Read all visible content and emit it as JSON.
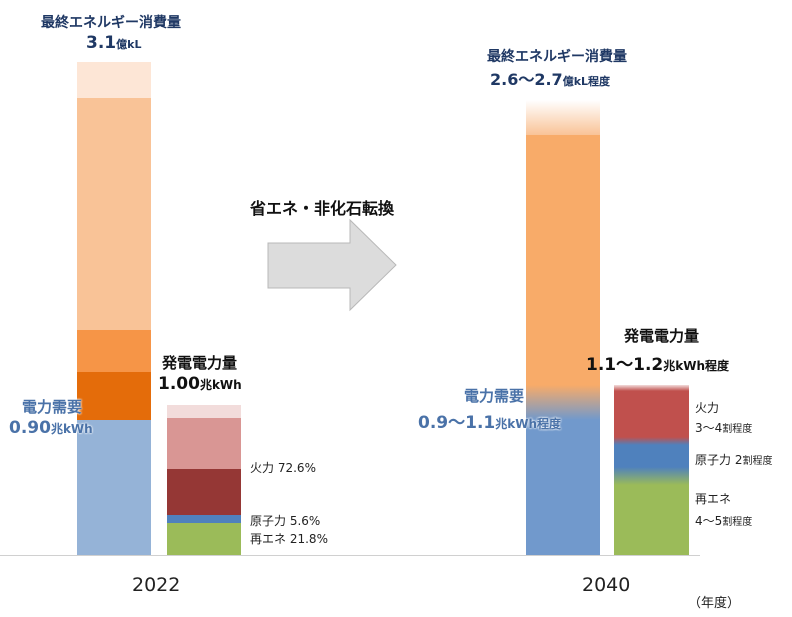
{
  "chart_data": {
    "type": "bar",
    "stacked": true,
    "categories": [
      "2022",
      "2040"
    ],
    "unit_note": "（年度）",
    "transition_label": "省エネ・非化石転換",
    "bars": {
      "2022": {
        "final_energy": {
          "title": "最終エネルギー消費量",
          "value": "3.1",
          "unit": "億kL"
        },
        "power_demand": {
          "title": "電力需要",
          "value": "0.90",
          "unit": "兆kWh"
        },
        "generation": {
          "title": "発電電力量",
          "value": "1.00",
          "unit": "兆kWh",
          "mix": [
            {
              "name": "火力",
              "label": "72.6%",
              "share": 72.6,
              "color": "#953735"
            },
            {
              "name": "原子力",
              "label": "5.6%",
              "share": 5.6,
              "color": "#4f81bd"
            },
            {
              "name": "再エネ",
              "label": "21.8%",
              "share": 21.8,
              "color": "#9bbb59"
            }
          ]
        }
      },
      "2040": {
        "final_energy": {
          "title": "最終エネルギー消費量",
          "value": "2.6〜2.7",
          "unit": "億kL程度"
        },
        "power_demand": {
          "title": "電力需要",
          "value": "0.9〜1.1",
          "unit": "兆kWh程度"
        },
        "generation": {
          "title": "発電電力量",
          "value": "1.1〜1.2",
          "unit": "兆kWh程度",
          "mix": [
            {
              "name": "火力",
              "label": "3〜4",
              "unit": "割程度",
              "color": "#c0504d"
            },
            {
              "name": "原子力",
              "label": "2",
              "unit": "割程度",
              "color": "#4f81bd"
            },
            {
              "name": "再エネ",
              "label": "4〜5",
              "unit": "割程度",
              "color": "#9bbb59"
            }
          ]
        }
      }
    }
  }
}
